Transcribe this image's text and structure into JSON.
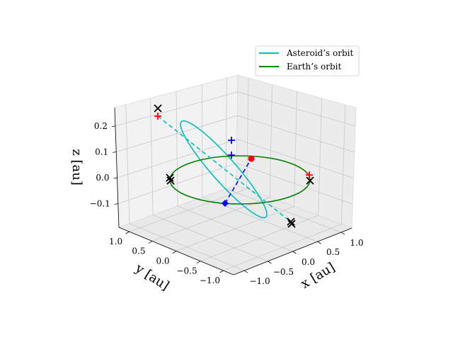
{
  "chart_data": {
    "type": "line",
    "projection": "3d",
    "xlabel": "$x$ [au]",
    "ylabel": "$y$ [au]",
    "zlabel": "$z$ [au]",
    "xlabel_text": "x [au]",
    "ylabel_text": "y [au]",
    "zlabel_text": "z [au]",
    "x_ticks": [
      "−1.0",
      "−0.5",
      "0.0",
      "0.5",
      "1.0"
    ],
    "y_ticks": [
      "1.0",
      "0.5",
      "0.0",
      "−0.5",
      "−1.0"
    ],
    "z_ticks": [
      "0.2",
      "0.1",
      "0.0",
      "−0.1"
    ],
    "xlim": [
      -1.2,
      1.2
    ],
    "ylim": [
      -1.2,
      1.2
    ],
    "zlim": [
      -0.15,
      0.28
    ],
    "grid": true,
    "legend_position": "top-right",
    "series": [
      {
        "name": "Asteroid’s orbit",
        "color": "#00bfbf",
        "kind": "ellipse"
      },
      {
        "name": "Earth’s orbit",
        "color": "#008000",
        "kind": "circle"
      }
    ],
    "markers": [
      {
        "marker": "x",
        "color": "#000000"
      },
      {
        "marker": "+",
        "color": "#ff0000"
      },
      {
        "marker": "+",
        "color": "#0000ff"
      },
      {
        "marker": "o",
        "color": "#ff0000"
      },
      {
        "marker": "D",
        "color": "#0000ff"
      }
    ],
    "lines": [
      {
        "style": "dashed",
        "color": "#00bfbf"
      },
      {
        "style": "dashed",
        "color": "#0000ff"
      }
    ]
  },
  "legend": {
    "items": [
      {
        "label": "Asteroid’s orbit",
        "color": "#00bfbf"
      },
      {
        "label": "Earth’s orbit",
        "color": "#008000"
      }
    ]
  }
}
